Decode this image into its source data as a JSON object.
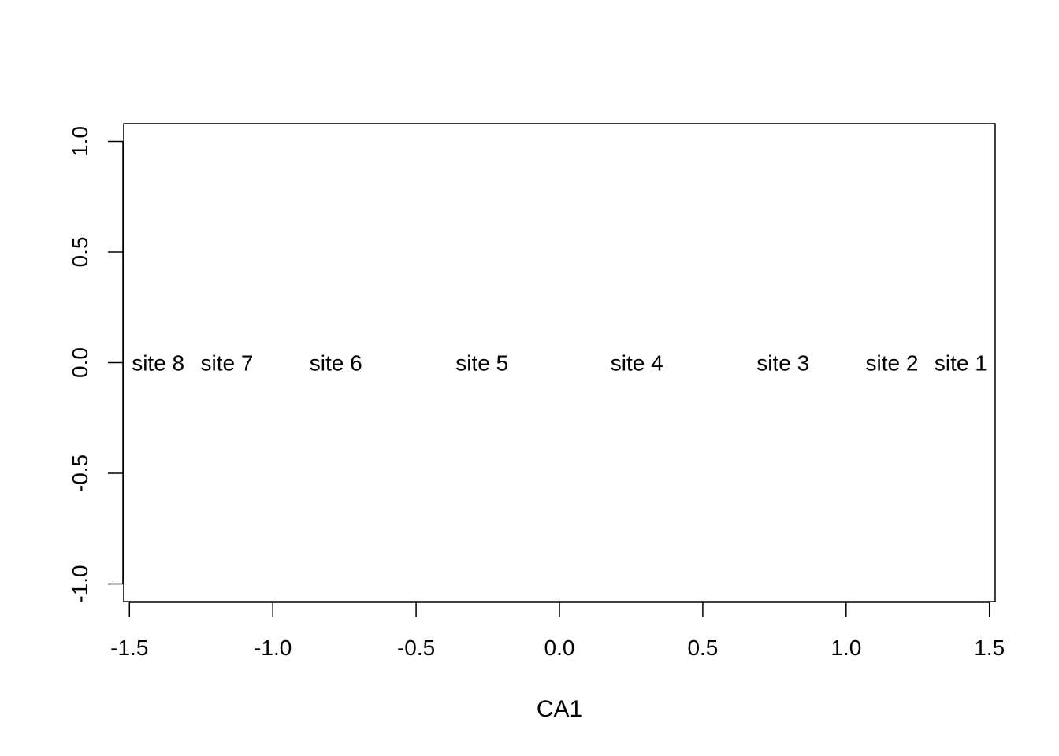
{
  "chart_data": {
    "type": "scatter",
    "title": "",
    "xlabel": "CA1",
    "ylabel": "",
    "xlim": [
      -1.52,
      1.52
    ],
    "ylim": [
      -1.08,
      1.08
    ],
    "xticks": [
      "-1.5",
      "-1.0",
      "-0.5",
      "0.0",
      "0.5",
      "1.0",
      "1.5"
    ],
    "yticks": [
      "-1.0",
      "-0.5",
      "0.0",
      "0.5",
      "1.0"
    ],
    "grid": false,
    "points": [
      {
        "label": "site 8",
        "x": -1.4,
        "y": 0.0
      },
      {
        "label": "site 7",
        "x": -1.16,
        "y": 0.0
      },
      {
        "label": "site 6",
        "x": -0.78,
        "y": 0.0
      },
      {
        "label": "site 5",
        "x": -0.27,
        "y": 0.0
      },
      {
        "label": "site 4",
        "x": 0.27,
        "y": 0.0
      },
      {
        "label": "site 3",
        "x": 0.78,
        "y": 0.0
      },
      {
        "label": "site 2",
        "x": 1.16,
        "y": 0.0
      },
      {
        "label": "site 1",
        "x": 1.4,
        "y": 0.0
      }
    ]
  }
}
